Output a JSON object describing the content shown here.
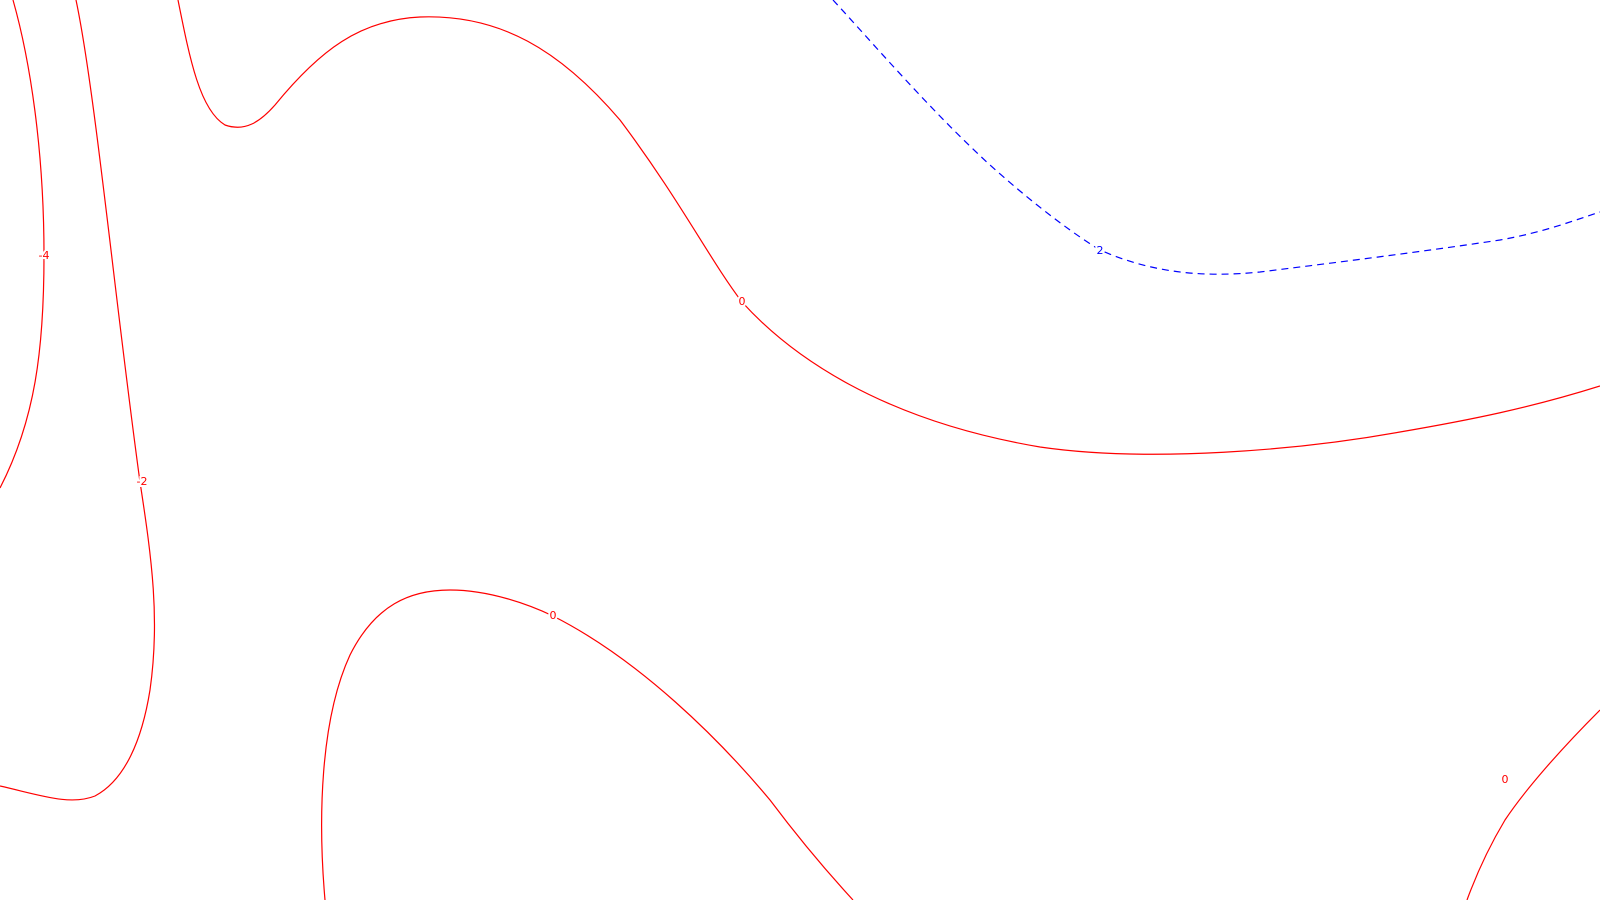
{
  "colors": {
    "background": "#ffffff",
    "negative_or_zero": "#ff0000",
    "positive": "#0000ff"
  },
  "contours": [
    {
      "id": "minus4",
      "level": -4,
      "label": "-4",
      "color": "#ff0000",
      "style": "solid"
    },
    {
      "id": "minus2",
      "level": -2,
      "label": "-2",
      "color": "#ff0000",
      "style": "solid"
    },
    {
      "id": "zero-upper",
      "level": 0,
      "label": "0",
      "color": "#ff0000",
      "style": "solid"
    },
    {
      "id": "zero-lower",
      "level": 0,
      "label": "0",
      "color": "#ff0000",
      "style": "solid"
    },
    {
      "id": "zero-corner",
      "level": 0,
      "label": "0",
      "color": "#ff0000",
      "style": "solid"
    },
    {
      "id": "plus2",
      "level": 2,
      "label": "2",
      "color": "#0000ff",
      "style": "dashed"
    }
  ]
}
